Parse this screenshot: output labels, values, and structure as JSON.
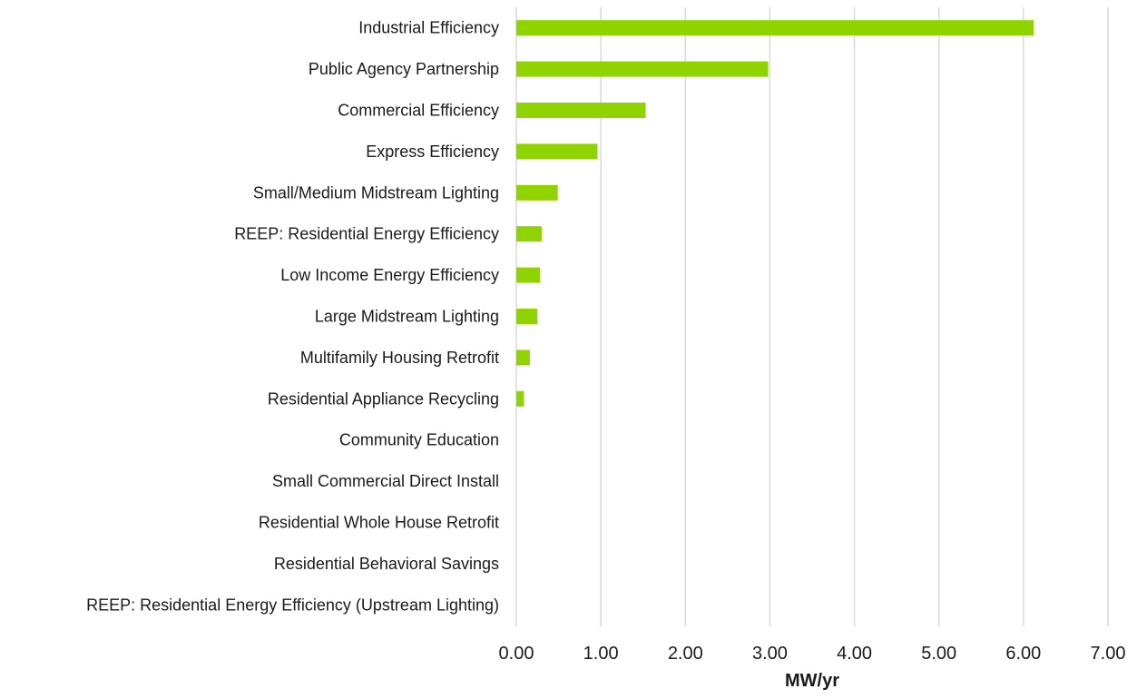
{
  "chart_data": {
    "type": "bar",
    "orientation": "horizontal",
    "categories": [
      "Industrial Efficiency",
      "Public Agency Partnership",
      "Commercial Efficiency",
      "Express Efficiency",
      "Small/Medium Midstream Lighting",
      "REEP: Residential Energy Efficiency",
      "Low Income Energy Efficiency",
      "Large Midstream Lighting",
      "Multifamily Housing Retrofit",
      "Residential Appliance Recycling",
      "Community Education",
      "Small Commercial Direct Install",
      "Residential Whole House Retrofit",
      "Residential Behavioral Savings",
      "REEP: Residential Energy Efficiency (Upstream Lighting)"
    ],
    "values": [
      6.12,
      2.98,
      1.53,
      0.96,
      0.49,
      0.3,
      0.28,
      0.25,
      0.16,
      0.09,
      0,
      0,
      0,
      0,
      0
    ],
    "xlabel": "MW/yr",
    "xlim": [
      0,
      7
    ],
    "xticks": [
      "0.00",
      "1.00",
      "2.00",
      "3.00",
      "4.00",
      "5.00",
      "6.00",
      "7.00"
    ],
    "grid": "vertical",
    "bar_color": "#8fd400"
  }
}
